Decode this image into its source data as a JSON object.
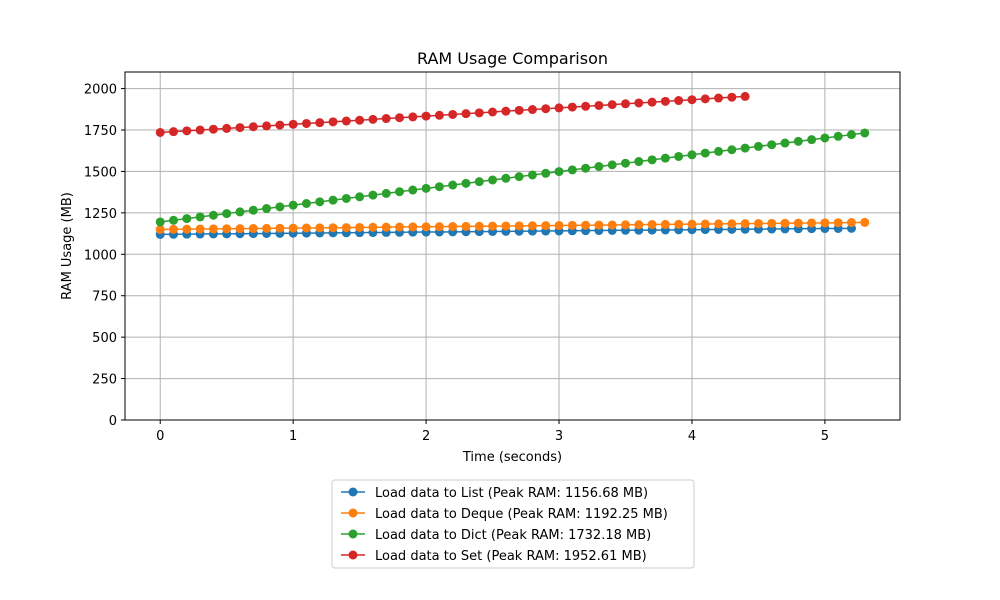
{
  "chart_data": {
    "type": "line",
    "title": "RAM Usage Comparison",
    "xlabel": "Time (seconds)",
    "ylabel": "RAM Usage (MB)",
    "xlim": [
      -0.265,
      5.565
    ],
    "ylim": [
      0,
      2100
    ],
    "xticks": [
      0,
      1,
      2,
      3,
      4,
      5
    ],
    "yticks": [
      0,
      250,
      500,
      750,
      1000,
      1250,
      1500,
      1750,
      2000
    ],
    "grid": true,
    "legend_position": "below",
    "series": [
      {
        "name": "Load data to List (Peak RAM: 1156.68 MB)",
        "color": "#1f77b4",
        "x_start": 0,
        "x_step": 0.1,
        "count": 53,
        "y_start": 1120,
        "y_end": 1156.68
      },
      {
        "name": "Load data to Deque (Peak RAM: 1192.25 MB)",
        "color": "#ff7f0e",
        "x_start": 0,
        "x_step": 0.1,
        "count": 54,
        "y_start": 1150,
        "y_end": 1192.25
      },
      {
        "name": "Load data to Dict (Peak RAM: 1732.18 MB)",
        "color": "#2ca02c",
        "x_start": 0,
        "x_step": 0.1,
        "count": 54,
        "y_start": 1195,
        "y_end": 1732.18
      },
      {
        "name": "Load data to Set (Peak RAM: 1952.61 MB)",
        "color": "#d62728",
        "x_start": 0,
        "x_step": 0.1,
        "count": 45,
        "y_start": 1735,
        "y_end": 1952.61
      }
    ]
  }
}
